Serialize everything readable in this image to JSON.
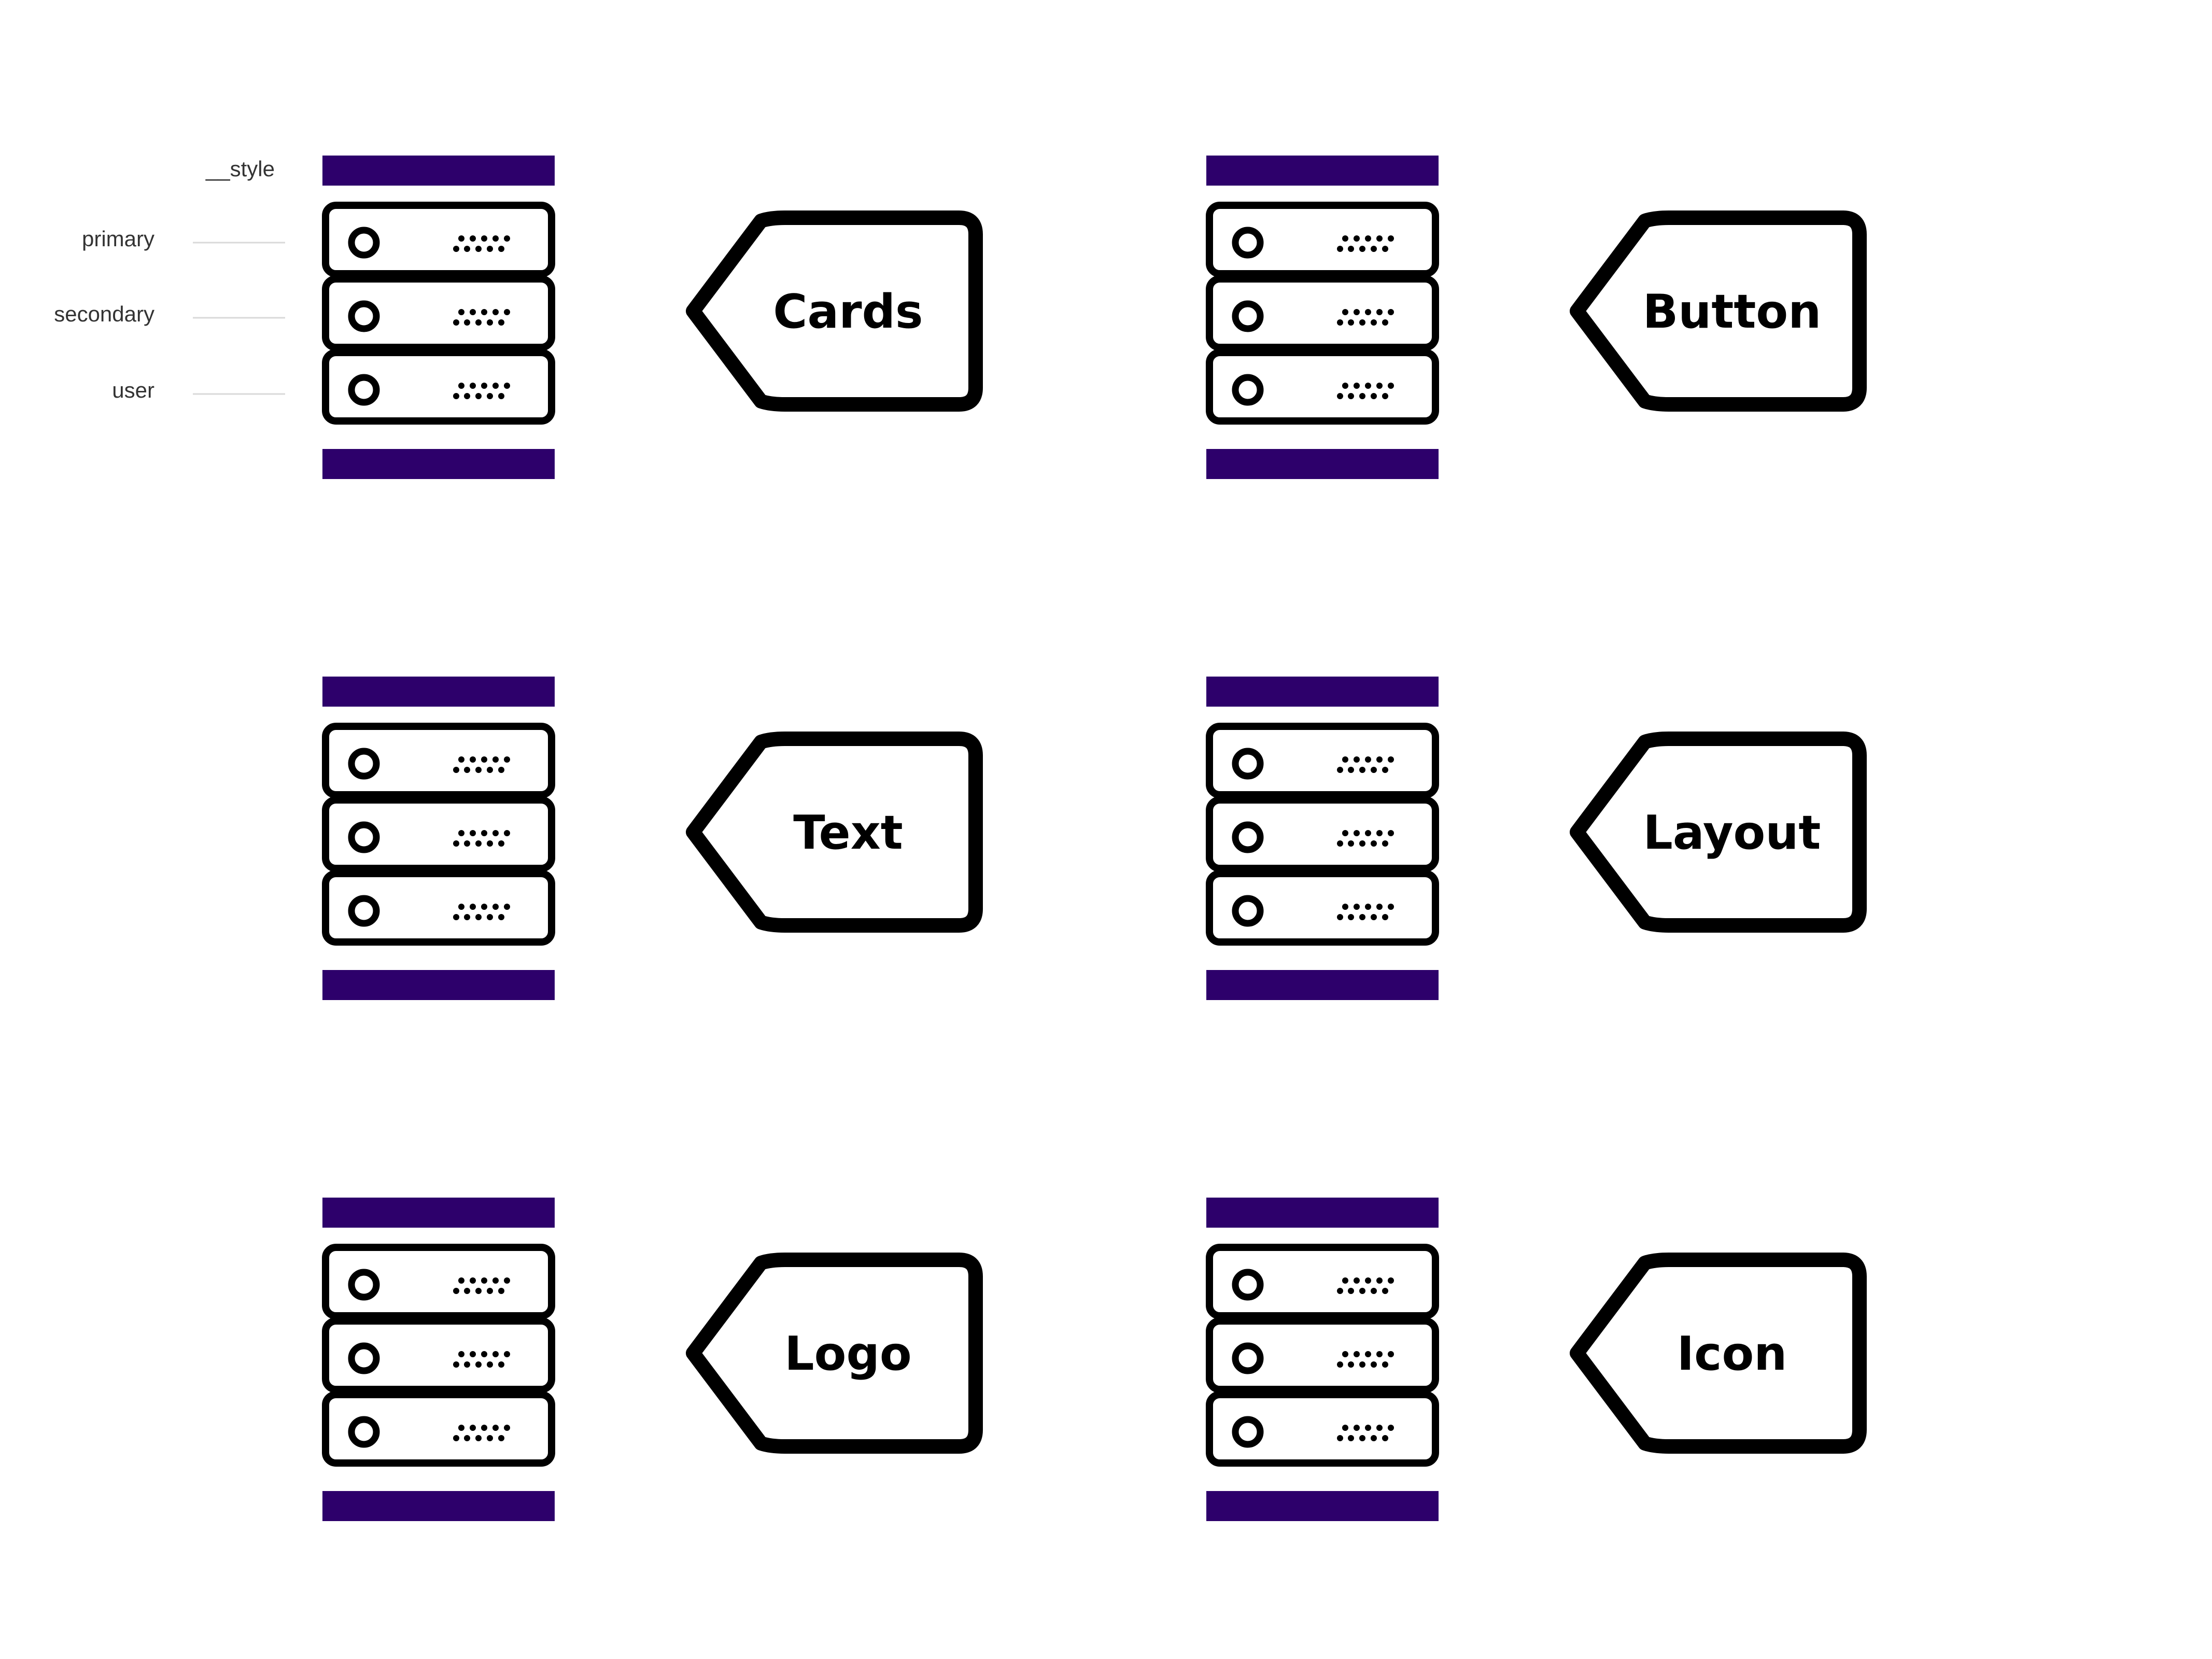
{
  "legend": {
    "style_label": "__style",
    "rows": [
      "primary",
      "secondary",
      "user"
    ]
  },
  "modules": [
    {
      "name": "Cards"
    },
    {
      "name": "Button"
    },
    {
      "name": "Text"
    },
    {
      "name": "Layout"
    },
    {
      "name": "Logo"
    },
    {
      "name": "Icon"
    }
  ],
  "colors": {
    "bar": "#2d006b",
    "stroke": "#000000",
    "leader": "#d9d9d9",
    "background": "#ffffff"
  },
  "icons": {
    "server": "server-stack-icon",
    "tag": "tag-icon"
  }
}
